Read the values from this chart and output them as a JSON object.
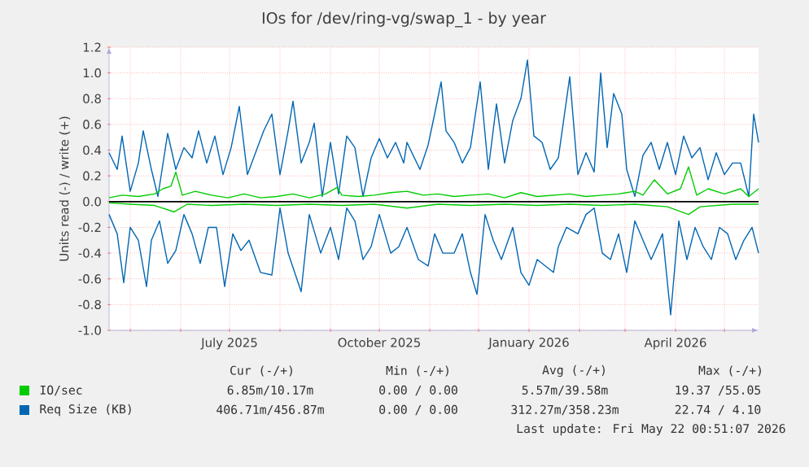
{
  "chart_data": {
    "type": "line",
    "title": "IOs for /dev/ring-vg/swap_1 - by year",
    "ylabel": "Units read (-) / write (+)",
    "xlim": [
      "2025-04-18",
      "2026-05-22"
    ],
    "ylim": [
      -1.0,
      1.2
    ],
    "xticks": [
      {
        "value": "2025-05-01",
        "label": null
      },
      {
        "value": "2025-06-01",
        "label": null
      },
      {
        "value": "2025-07-01",
        "label": "July 2025"
      },
      {
        "value": "2025-08-01",
        "label": null
      },
      {
        "value": "2025-09-01",
        "label": null
      },
      {
        "value": "2025-10-01",
        "label": "October 2025"
      },
      {
        "value": "2025-11-01",
        "label": null
      },
      {
        "value": "2025-12-01",
        "label": null
      },
      {
        "value": "2026-01-01",
        "label": "January 2026"
      },
      {
        "value": "2026-02-01",
        "label": null
      },
      {
        "value": "2026-03-01",
        "label": null
      },
      {
        "value": "2026-04-01",
        "label": "April 2026"
      },
      {
        "value": "2026-05-01",
        "label": null
      }
    ],
    "yticks": [
      {
        "value": -1.0,
        "label": "-1.0"
      },
      {
        "value": -0.8,
        "label": "-0.8"
      },
      {
        "value": -0.6,
        "label": "-0.6"
      },
      {
        "value": -0.4,
        "label": "-0.4"
      },
      {
        "value": -0.2,
        "label": "-0.2"
      },
      {
        "value": 0.0,
        "label": "0.0"
      },
      {
        "value": 0.2,
        "label": "0.2"
      },
      {
        "value": 0.4,
        "label": "0.4"
      },
      {
        "value": 0.6,
        "label": "0.6"
      },
      {
        "value": 0.8,
        "label": "0.8"
      },
      {
        "value": 1.0,
        "label": "1.0"
      },
      {
        "value": 1.2,
        "label": "1.2"
      }
    ],
    "grid": true,
    "legend": "bottom left",
    "marker": "none",
    "line_style": "solid",
    "ref_lines": [
      {
        "axis": "y",
        "value": 0,
        "color": "#000000"
      }
    ],
    "series": [
      {
        "name": "IO/sec",
        "color": "#00cc00",
        "x": [
          "2025-04-18",
          "2025-04-26",
          "2025-05-06",
          "2025-05-16",
          "2025-05-21",
          "2025-05-26",
          "2025-05-29",
          "2025-06-02",
          "2025-06-10",
          "2025-06-20",
          "2025-06-30",
          "2025-07-10",
          "2025-07-20",
          "2025-07-30",
          "2025-08-09",
          "2025-08-19",
          "2025-08-29",
          "2025-09-05",
          "2025-09-08",
          "2025-09-18",
          "2025-09-28",
          "2025-10-08",
          "2025-10-18",
          "2025-10-28",
          "2025-11-06",
          "2025-11-16",
          "2025-11-26",
          "2025-12-07",
          "2025-12-17",
          "2025-12-27",
          "2026-01-06",
          "2026-01-16",
          "2026-01-26",
          "2026-02-05",
          "2026-02-15",
          "2026-02-25",
          "2026-03-07",
          "2026-03-12",
          "2026-03-19",
          "2026-03-27",
          "2026-04-04",
          "2026-04-09",
          "2026-04-14",
          "2026-04-21",
          "2026-05-01",
          "2026-05-11",
          "2026-05-16",
          "2026-05-22"
        ],
        "values": [
          0.03,
          0.05,
          0.04,
          0.06,
          0.1,
          0.12,
          0.23,
          0.05,
          0.08,
          0.05,
          0.03,
          0.06,
          0.03,
          0.04,
          0.06,
          0.03,
          0.06,
          0.11,
          0.05,
          0.04,
          0.05,
          0.07,
          0.08,
          0.05,
          0.06,
          0.04,
          0.05,
          0.06,
          0.03,
          0.07,
          0.04,
          0.05,
          0.06,
          0.04,
          0.05,
          0.06,
          0.08,
          0.05,
          0.17,
          0.06,
          0.1,
          0.27,
          0.05,
          0.1,
          0.06,
          0.1,
          0.04,
          0.1
        ]
      },
      {
        "color": "#00cc00",
        "x": [
          "2025-04-18",
          "2025-05-01",
          "2025-05-16",
          "2025-05-28",
          "2025-06-05",
          "2025-06-20",
          "2025-07-10",
          "2025-07-30",
          "2025-08-19",
          "2025-09-08",
          "2025-09-28",
          "2025-10-18",
          "2025-11-06",
          "2025-11-26",
          "2025-12-17",
          "2026-01-06",
          "2026-01-26",
          "2026-02-15",
          "2026-03-07",
          "2026-03-27",
          "2026-04-09",
          "2026-04-16",
          "2026-05-06",
          "2026-05-22"
        ],
        "values": [
          -0.01,
          -0.02,
          -0.03,
          -0.08,
          -0.02,
          -0.03,
          -0.02,
          -0.03,
          -0.02,
          -0.03,
          -0.02,
          -0.05,
          -0.02,
          -0.03,
          -0.02,
          -0.03,
          -0.02,
          -0.03,
          -0.02,
          -0.04,
          -0.1,
          -0.04,
          -0.02,
          -0.02
        ]
      },
      {
        "name": "Req Size (KB)",
        "color": "#0066b3",
        "x": [
          "2025-04-18",
          "2025-04-23",
          "2025-04-26",
          "2025-05-01",
          "2025-05-06",
          "2025-05-09",
          "2025-05-14",
          "2025-05-18",
          "2025-05-24",
          "2025-05-29",
          "2025-06-03",
          "2025-06-08",
          "2025-06-12",
          "2025-06-17",
          "2025-06-22",
          "2025-06-27",
          "2025-07-02",
          "2025-07-07",
          "2025-07-12",
          "2025-07-17",
          "2025-07-22",
          "2025-07-27",
          "2025-08-01",
          "2025-08-06",
          "2025-08-09",
          "2025-08-14",
          "2025-08-19",
          "2025-08-22",
          "2025-08-27",
          "2025-09-01",
          "2025-09-06",
          "2025-09-11",
          "2025-09-16",
          "2025-09-21",
          "2025-09-26",
          "2025-10-01",
          "2025-10-06",
          "2025-10-11",
          "2025-10-16",
          "2025-10-18",
          "2025-10-26",
          "2025-10-31",
          "2025-11-04",
          "2025-11-08",
          "2025-11-11",
          "2025-11-16",
          "2025-11-21",
          "2025-11-26",
          "2025-12-02",
          "2025-12-07",
          "2025-12-12",
          "2025-12-17",
          "2025-12-22",
          "2025-12-27",
          "2025-12-31",
          "2026-01-04",
          "2026-01-09",
          "2026-01-14",
          "2026-01-19",
          "2026-01-26",
          "2026-01-31",
          "2026-02-05",
          "2026-02-10",
          "2026-02-14",
          "2026-02-18",
          "2026-02-22",
          "2026-02-27",
          "2026-03-02",
          "2026-03-07",
          "2026-03-12",
          "2026-03-17",
          "2026-03-22",
          "2026-03-27",
          "2026-04-01",
          "2026-04-06",
          "2026-04-11",
          "2026-04-16",
          "2026-04-21",
          "2026-04-26",
          "2026-05-01",
          "2026-05-06",
          "2026-05-11",
          "2026-05-16",
          "2026-05-19",
          "2026-05-22"
        ],
        "values": [
          0.38,
          0.25,
          0.51,
          0.08,
          0.3,
          0.55,
          0.25,
          0.04,
          0.53,
          0.25,
          0.42,
          0.34,
          0.55,
          0.3,
          0.51,
          0.21,
          0.42,
          0.74,
          0.21,
          0.38,
          0.55,
          0.68,
          0.21,
          0.55,
          0.78,
          0.3,
          0.46,
          0.61,
          0.04,
          0.46,
          0.06,
          0.51,
          0.42,
          0.04,
          0.34,
          0.49,
          0.34,
          0.46,
          0.3,
          0.46,
          0.25,
          0.44,
          0.68,
          0.93,
          0.55,
          0.46,
          0.3,
          0.42,
          0.93,
          0.25,
          0.76,
          0.3,
          0.63,
          0.8,
          1.1,
          0.51,
          0.46,
          0.25,
          0.34,
          0.97,
          0.21,
          0.38,
          0.23,
          1.0,
          0.42,
          0.84,
          0.68,
          0.25,
          0.04,
          0.36,
          0.46,
          0.25,
          0.46,
          0.21,
          0.51,
          0.34,
          0.42,
          0.17,
          0.38,
          0.21,
          0.3,
          0.3,
          0.04,
          0.68,
          0.46
        ]
      },
      {
        "color": "#0066b3",
        "x": [
          "2025-04-18",
          "2025-04-23",
          "2025-04-27",
          "2025-05-01",
          "2025-05-06",
          "2025-05-11",
          "2025-05-14",
          "2025-05-19",
          "2025-05-24",
          "2025-05-29",
          "2025-06-03",
          "2025-06-08",
          "2025-06-13",
          "2025-06-18",
          "2025-06-23",
          "2025-06-28",
          "2025-07-03",
          "2025-07-08",
          "2025-07-13",
          "2025-07-20",
          "2025-07-27",
          "2025-08-01",
          "2025-08-06",
          "2025-08-14",
          "2025-08-19",
          "2025-08-26",
          "2025-09-01",
          "2025-09-06",
          "2025-09-11",
          "2025-09-16",
          "2025-09-21",
          "2025-09-26",
          "2025-10-01",
          "2025-10-08",
          "2025-10-13",
          "2025-10-18",
          "2025-10-25",
          "2025-10-31",
          "2025-11-04",
          "2025-11-09",
          "2025-11-16",
          "2025-11-21",
          "2025-11-26",
          "2025-11-30",
          "2025-12-05",
          "2025-12-10",
          "2025-12-15",
          "2025-12-22",
          "2025-12-27",
          "2026-01-01",
          "2026-01-06",
          "2026-01-11",
          "2026-01-16",
          "2026-01-19",
          "2026-01-24",
          "2026-01-31",
          "2026-02-05",
          "2026-02-10",
          "2026-02-15",
          "2026-02-20",
          "2026-02-25",
          "2026-03-02",
          "2026-03-07",
          "2026-03-12",
          "2026-03-17",
          "2026-03-24",
          "2026-03-29",
          "2026-04-03",
          "2026-04-08",
          "2026-04-13",
          "2026-04-18",
          "2026-04-23",
          "2026-04-28",
          "2026-05-03",
          "2026-05-08",
          "2026-05-13",
          "2026-05-18",
          "2026-05-22"
        ],
        "values": [
          -0.1,
          -0.25,
          -0.63,
          -0.2,
          -0.3,
          -0.66,
          -0.3,
          -0.15,
          -0.48,
          -0.38,
          -0.1,
          -0.25,
          -0.48,
          -0.2,
          -0.2,
          -0.66,
          -0.25,
          -0.38,
          -0.3,
          -0.55,
          -0.57,
          -0.05,
          -0.4,
          -0.7,
          -0.1,
          -0.4,
          -0.2,
          -0.45,
          -0.05,
          -0.15,
          -0.45,
          -0.35,
          -0.1,
          -0.4,
          -0.35,
          -0.2,
          -0.45,
          -0.5,
          -0.25,
          -0.4,
          -0.4,
          -0.25,
          -0.55,
          -0.72,
          -0.1,
          -0.3,
          -0.45,
          -0.2,
          -0.55,
          -0.65,
          -0.45,
          -0.5,
          -0.55,
          -0.35,
          -0.2,
          -0.25,
          -0.1,
          -0.05,
          -0.4,
          -0.45,
          -0.25,
          -0.55,
          -0.15,
          -0.3,
          -0.45,
          -0.25,
          -0.88,
          -0.15,
          -0.45,
          -0.2,
          -0.35,
          -0.45,
          -0.2,
          -0.25,
          -0.45,
          -0.3,
          -0.2,
          -0.4
        ]
      }
    ],
    "annotations": [
      "Cur (-/+)",
      "Min (-/+)",
      "Avg (-/+)",
      "Max (-/+)",
      "6.85m/10.17m",
      "0.00 / 0.00",
      "5.57m/39.58m",
      "19.37 /55.05",
      "406.71m/456.87m",
      "0.00 / 0.00",
      "312.27m/358.23m",
      "22.74 / 4.10",
      "Last update: Fri May 22 00:51:07 2026"
    ]
  }
}
